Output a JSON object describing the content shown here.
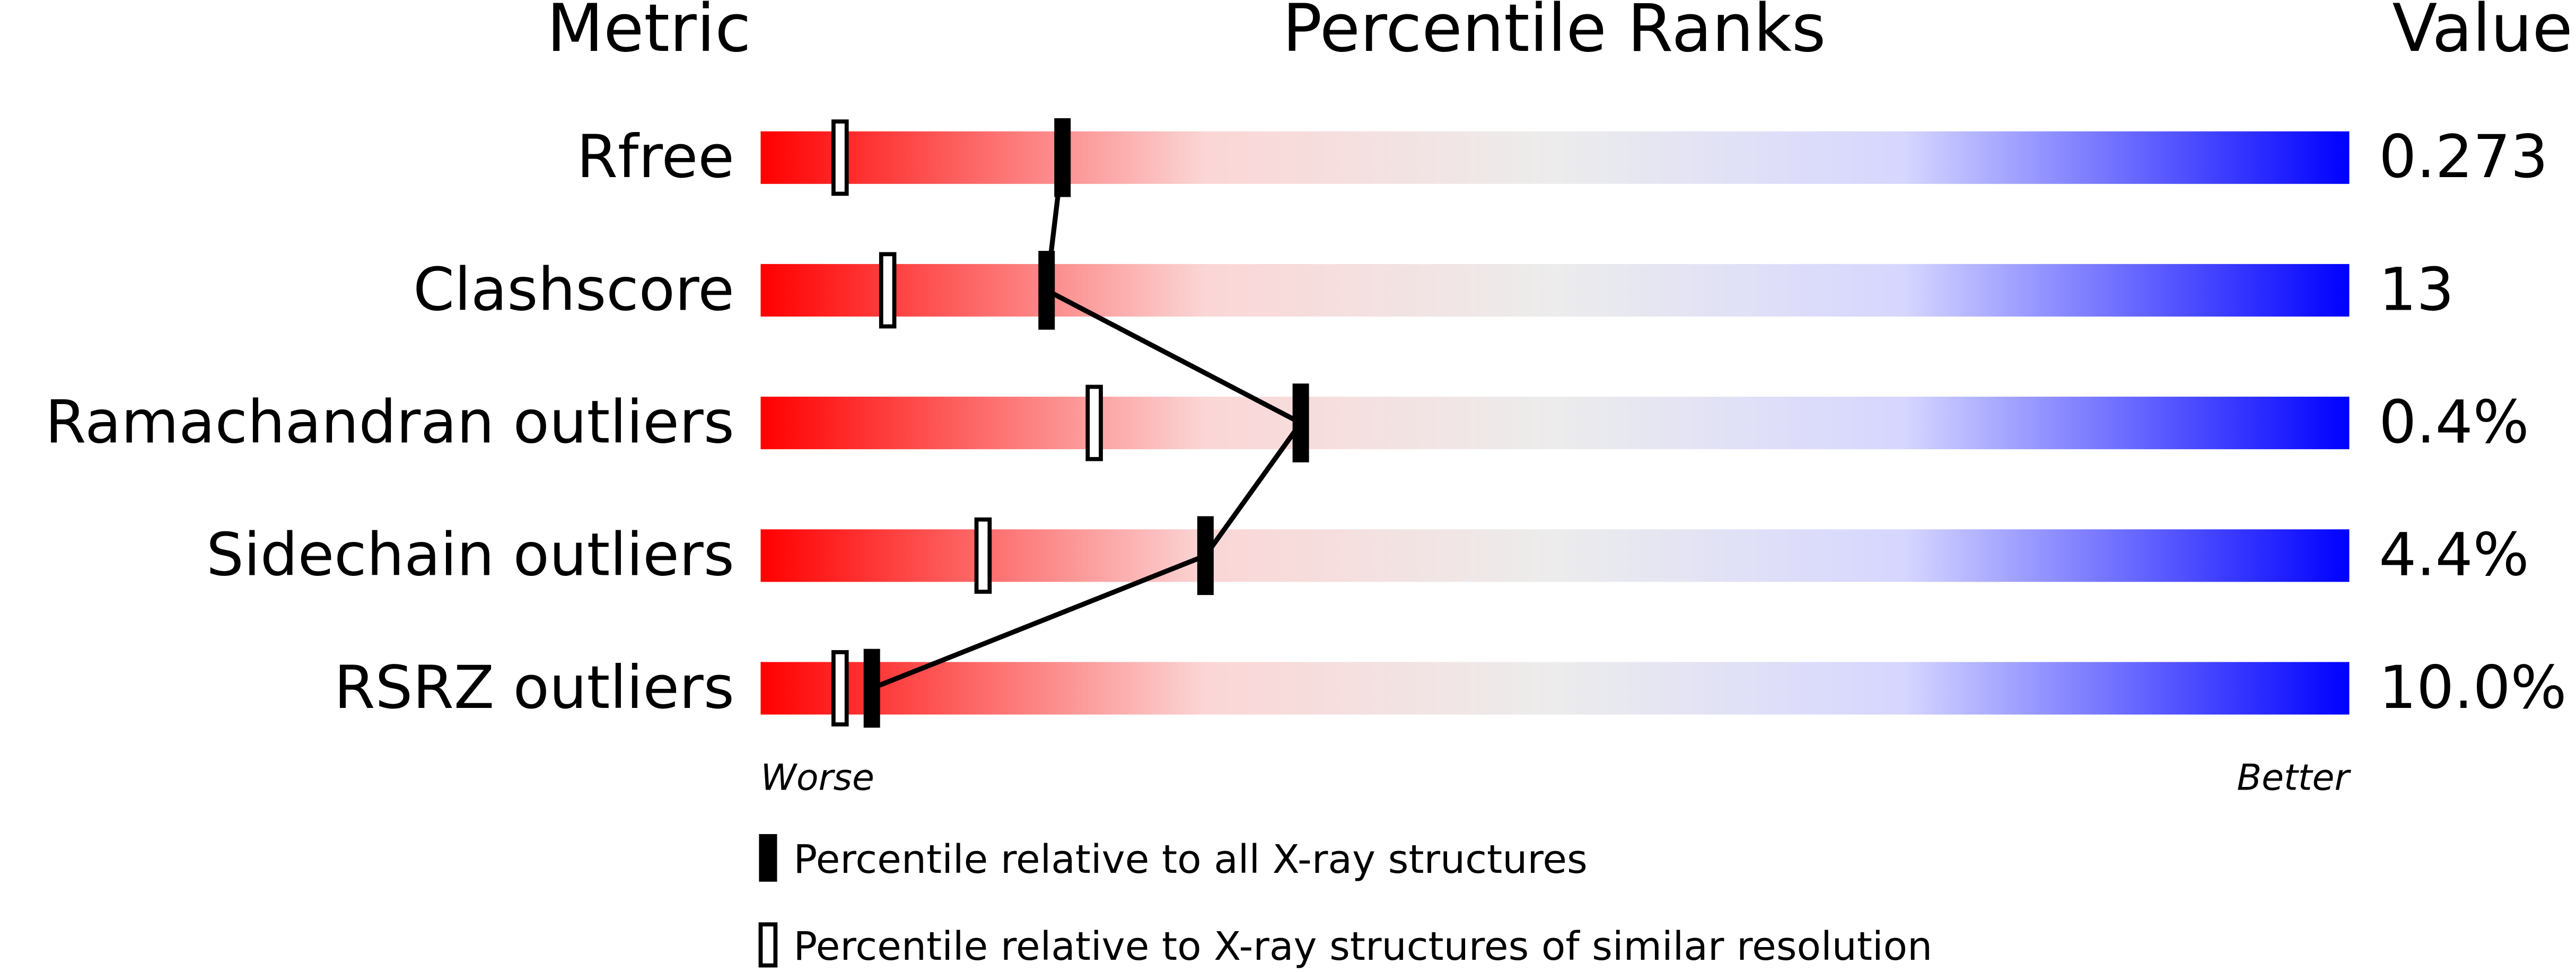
{
  "chart_data": {
    "type": "percentile",
    "headers": [
      "Metric",
      "Percentile Ranks",
      "Value"
    ],
    "categories": [
      "Rfree",
      "Clashscore",
      "Ramachandran outliers",
      "Sidechain outliers",
      "RSRZ outliers"
    ],
    "metric_values": [
      "0.273",
      "13",
      "0.4%",
      "4.4%",
      "10.0%"
    ],
    "xlim": [
      0,
      100
    ],
    "axis_ends": [
      "Worse",
      "Better"
    ],
    "series": [
      {
        "name": "Percentile relative to all X-ray structures",
        "color": "#000000",
        "marker": "filled",
        "connect": true,
        "values": [
          19,
          18,
          34,
          28,
          7
        ]
      },
      {
        "name": "Percentile relative to X-ray structures of similar resolution",
        "color": "#000000",
        "marker": "open",
        "connect": false,
        "values": [
          5,
          8,
          21,
          14,
          5
        ]
      }
    ]
  }
}
